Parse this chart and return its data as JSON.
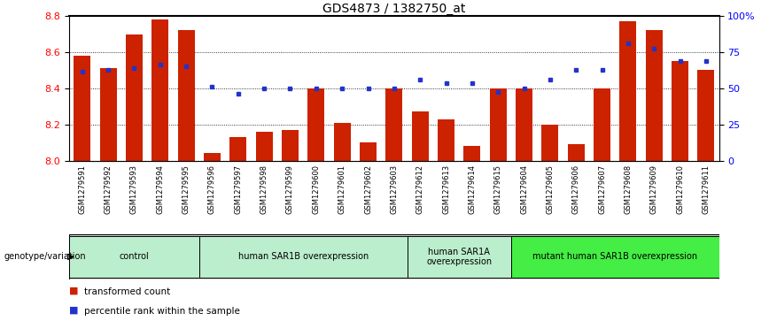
{
  "title": "GDS4873 / 1382750_at",
  "samples": [
    "GSM1279591",
    "GSM1279592",
    "GSM1279593",
    "GSM1279594",
    "GSM1279595",
    "GSM1279596",
    "GSM1279597",
    "GSM1279598",
    "GSM1279599",
    "GSM1279600",
    "GSM1279601",
    "GSM1279602",
    "GSM1279603",
    "GSM1279612",
    "GSM1279613",
    "GSM1279614",
    "GSM1279615",
    "GSM1279604",
    "GSM1279605",
    "GSM1279606",
    "GSM1279607",
    "GSM1279608",
    "GSM1279609",
    "GSM1279610",
    "GSM1279611"
  ],
  "bar_values": [
    8.58,
    8.51,
    8.7,
    8.78,
    8.72,
    8.04,
    8.13,
    8.16,
    8.17,
    8.4,
    8.21,
    8.1,
    8.4,
    8.27,
    8.23,
    8.08,
    8.4,
    8.4,
    8.2,
    8.09,
    8.4,
    8.77,
    8.72,
    8.55,
    8.5
  ],
  "percentile_values": [
    8.49,
    8.5,
    8.51,
    8.53,
    8.52,
    8.41,
    8.37,
    8.4,
    8.4,
    8.4,
    8.4,
    8.4,
    8.4,
    8.45,
    8.43,
    8.43,
    8.38,
    8.4,
    8.45,
    8.5,
    8.5,
    8.65,
    8.62,
    8.55,
    8.55
  ],
  "ylim_min": 8.0,
  "ylim_max": 8.8,
  "yticks": [
    8.0,
    8.2,
    8.4,
    8.6,
    8.8
  ],
  "grid_lines": [
    8.2,
    8.4,
    8.6
  ],
  "right_ytick_percents": [
    0,
    25,
    50,
    75,
    100
  ],
  "right_ytick_labels": [
    "0",
    "25",
    "50",
    "75",
    "100%"
  ],
  "bar_color": "#cc2200",
  "dot_color": "#2233cc",
  "groups": [
    {
      "label": "control",
      "start": 0,
      "end": 5,
      "color": "#bbeecc"
    },
    {
      "label": "human SAR1B overexpression",
      "start": 5,
      "end": 13,
      "color": "#bbeecc"
    },
    {
      "label": "human SAR1A\noverexpression",
      "start": 13,
      "end": 17,
      "color": "#bbeecc"
    },
    {
      "label": "mutant human SAR1B overexpression",
      "start": 17,
      "end": 25,
      "color": "#44ee44"
    }
  ],
  "genotype_label": "genotype/variation",
  "legend_bar_label": "transformed count",
  "legend_dot_label": "percentile rank within the sample",
  "title_fontsize": 10,
  "tick_fontsize": 6.0,
  "bar_width": 0.65,
  "xtick_bg": "#cccccc",
  "fig_bg": "#ffffff"
}
